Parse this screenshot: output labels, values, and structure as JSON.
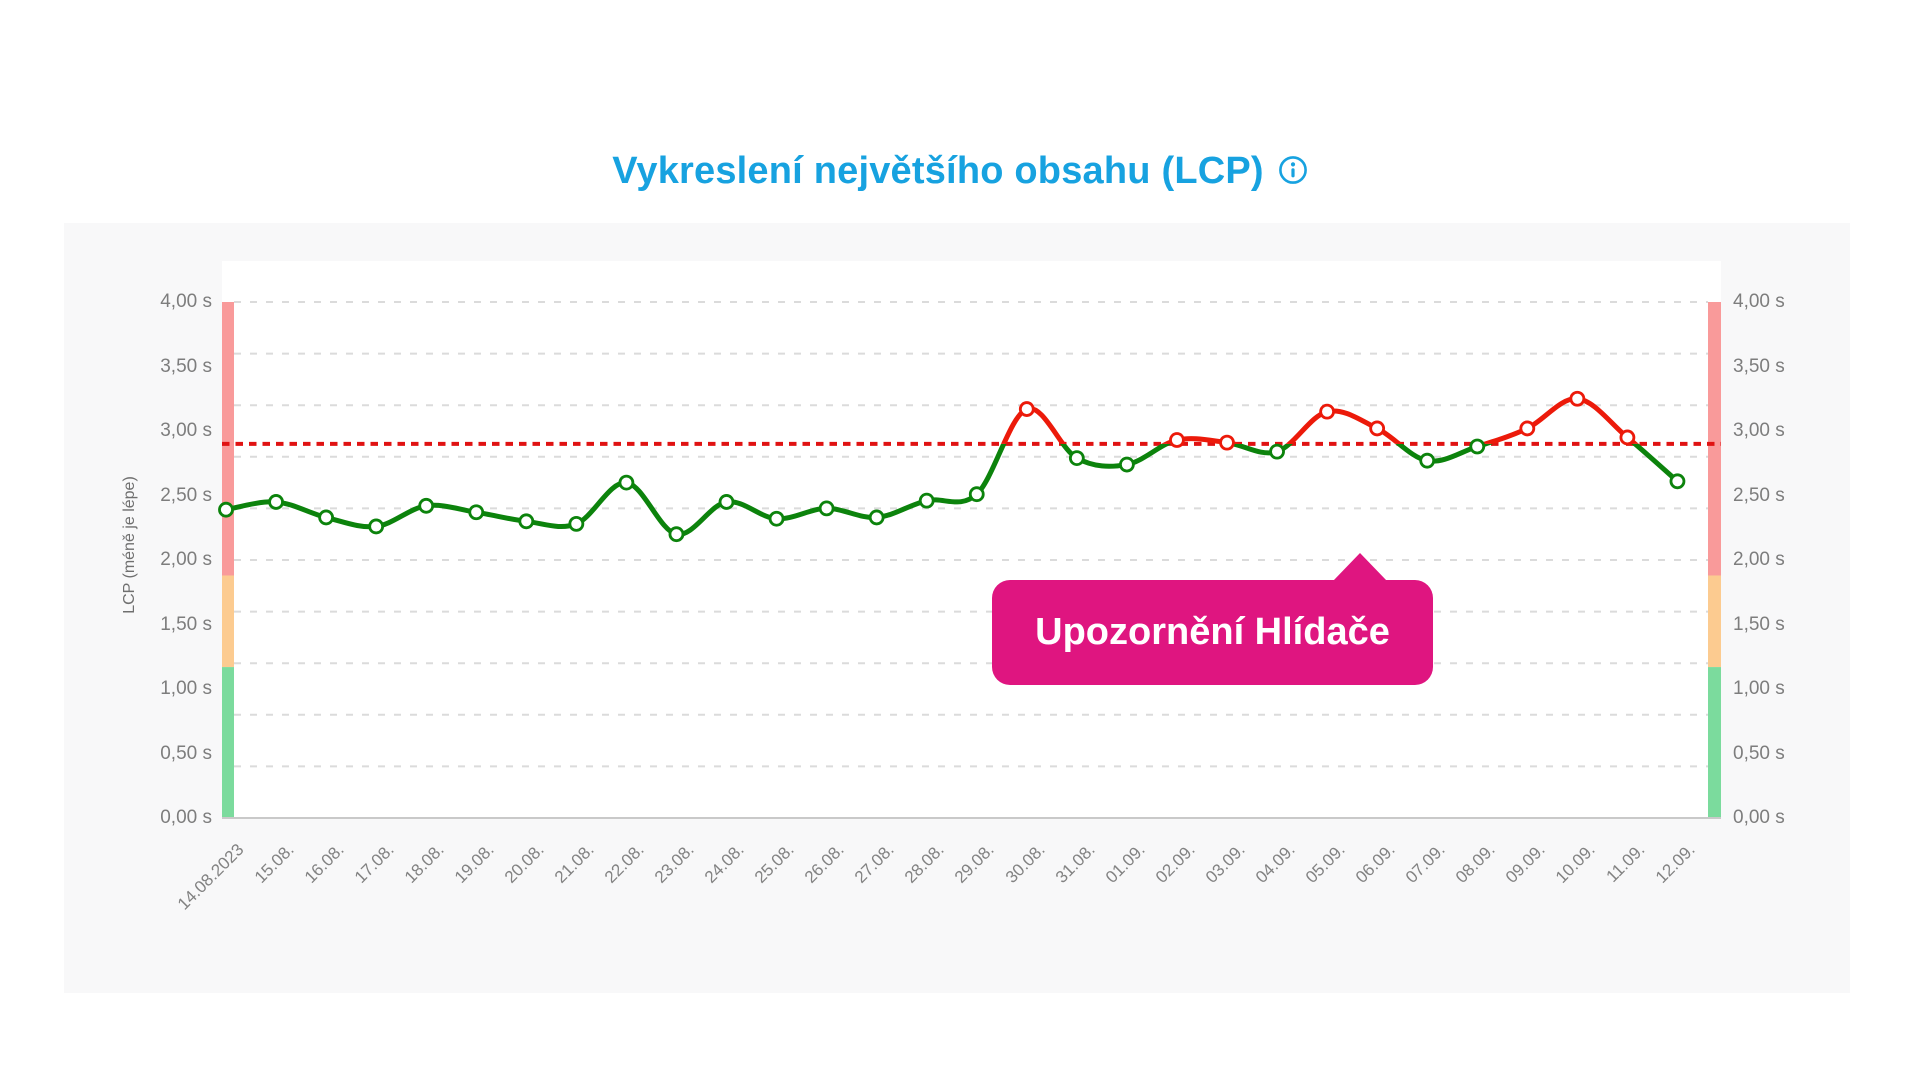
{
  "title": {
    "text": "Vykreslení největšího obsahu (LCP)",
    "color": "#17a2e0",
    "info_icon": "info-icon"
  },
  "callout": {
    "label": "Upozornění Hlídače",
    "color": "#df1580",
    "points_to": "06.09."
  },
  "chart_data": {
    "type": "line",
    "title": "Vykreslení největšího obsahu (LCP)",
    "xlabel": "",
    "ylabel": "LCP (méně je lépe)",
    "unit": "s",
    "ylim": [
      0,
      4
    ],
    "grid": "dashed",
    "legend_position": "none",
    "axis_sides": [
      "left",
      "right"
    ],
    "categories": [
      "14.08.2023",
      "15.08.",
      "16.08.",
      "17.08.",
      "18.08.",
      "19.08.",
      "20.08.",
      "21.08.",
      "22.08.",
      "23.08.",
      "24.08.",
      "25.08.",
      "26.08.",
      "27.08.",
      "28.08.",
      "29.08.",
      "30.08.",
      "31.08.",
      "01.09.",
      "02.09.",
      "03.09.",
      "04.09.",
      "05.09.",
      "06.09.",
      "07.09.",
      "08.09.",
      "09.09.",
      "10.09.",
      "11.09.",
      "12.09."
    ],
    "series": [
      {
        "name": "LCP",
        "values": [
          2.39,
          2.45,
          2.33,
          2.26,
          2.42,
          2.37,
          2.3,
          2.28,
          2.6,
          2.2,
          2.45,
          2.32,
          2.4,
          2.33,
          2.46,
          2.51,
          3.17,
          2.79,
          2.74,
          2.93,
          2.91,
          2.84,
          3.15,
          3.02,
          2.77,
          2.88,
          3.02,
          3.25,
          2.95,
          2.61
        ]
      }
    ],
    "y_ticks": {
      "values": [
        4,
        3.5,
        3,
        2.5,
        2,
        1.5,
        1,
        0.5,
        0
      ],
      "labels": [
        "4,00 s",
        "3,50 s",
        "3,00 s",
        "2,50 s",
        "2,00 s",
        "1,50 s",
        "1,00 s",
        "0,50 s",
        "0,00 s"
      ]
    },
    "gridline_values": [
      4,
      3.6,
      3.2,
      2.8,
      2.4,
      2,
      1.6,
      1.2,
      0.8,
      0.4
    ],
    "threshold": {
      "value": 2.9,
      "style": "dotted",
      "color": "#e01212",
      "label": "Upozornění Hlídače"
    },
    "bands": [
      {
        "from": 4.0,
        "to": 1.88,
        "color": "#f99a9a",
        "meaning": "poor"
      },
      {
        "from": 1.88,
        "to": 1.17,
        "color": "#fccb90",
        "meaning": "needs-improvement"
      },
      {
        "from": 1.17,
        "to": 0.0,
        "color": "#7bdb9d",
        "meaning": "good"
      }
    ],
    "line_colors": {
      "below_threshold": "#0c830c",
      "above_threshold": "#ec1a0a"
    },
    "marker": "open-circle",
    "colors": {
      "gridline": "#dbdbdb",
      "axis_line": "#c9c9c9",
      "tick_text": "#7d7d7d",
      "card_bg": "#f8f8f9"
    }
  }
}
